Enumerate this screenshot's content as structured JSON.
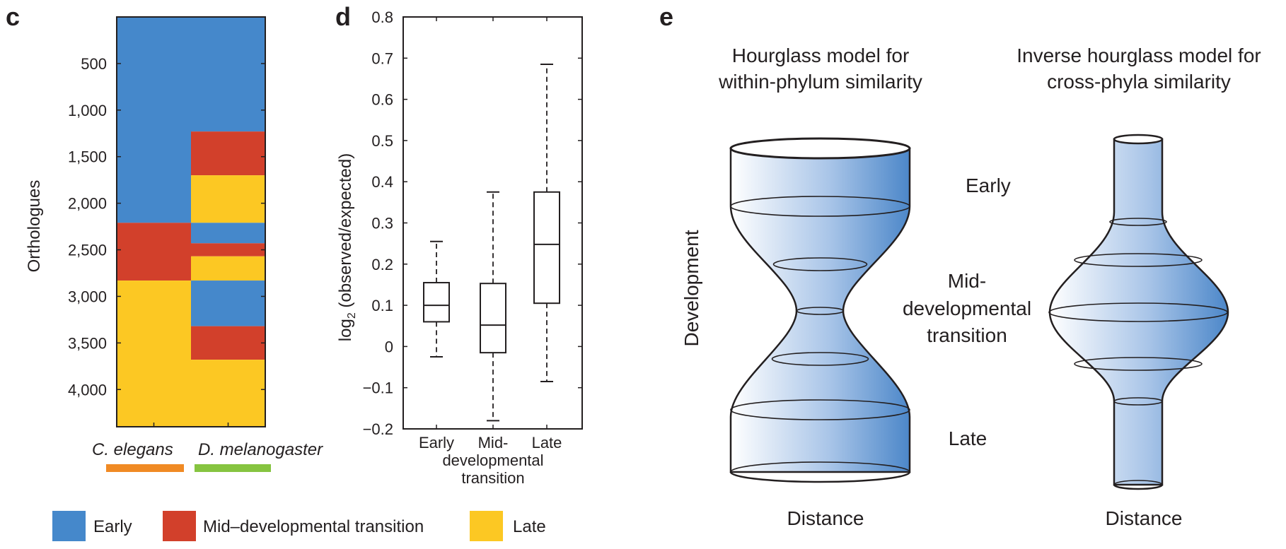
{
  "panels": {
    "c": "c",
    "d": "d",
    "e": "e"
  },
  "colors": {
    "Early": "#4588cb",
    "Mid-developmental transition": "#d2402b",
    "Late": "#fcc823",
    "c_elegans_bar": "#f08a24",
    "d_melanogaster_bar": "#86c440"
  },
  "legend": [
    {
      "label": "Early",
      "color": "#4588cb"
    },
    {
      "label": "Mid–developmental transition",
      "color": "#d2402b"
    },
    {
      "label": "Late",
      "color": "#fcc823"
    }
  ],
  "species": [
    "C. elegans",
    "D. melanogaster"
  ],
  "model_titles": {
    "hourglass_line1": "Hourglass model for",
    "hourglass_line2": "within-phylum similarity",
    "inverse_line1": "Inverse hourglass model for",
    "inverse_line2": "cross-phyla similarity"
  },
  "model_labels": {
    "early": "Early",
    "mid_line1": "Mid-",
    "mid_line2": "developmental",
    "mid_line3": "transition",
    "late": "Late",
    "development": "Development",
    "distance_left": "Distance",
    "distance_right": "Distance"
  },
  "chart_data": [
    {
      "panel": "c",
      "type": "heatmap",
      "ylabel": "Orthologues",
      "yticks": [
        "500",
        "1,000",
        "1,500",
        "2,000",
        "2,500",
        "3,000",
        "3,500",
        "4,000"
      ],
      "ylim": [
        0,
        4400
      ],
      "columns": [
        "C. elegans",
        "D. melanogaster"
      ],
      "segments": {
        "C. elegans": [
          {
            "stage": "Early",
            "from": 0,
            "to": 2210
          },
          {
            "stage": "Mid-developmental transition",
            "from": 2210,
            "to": 2830
          },
          {
            "stage": "Late",
            "from": 2830,
            "to": 4400
          }
        ],
        "D. melanogaster": [
          {
            "stage": "Early",
            "from": 0,
            "to": 1230
          },
          {
            "stage": "Mid-developmental transition",
            "from": 1230,
            "to": 1700
          },
          {
            "stage": "Late",
            "from": 1700,
            "to": 2210
          },
          {
            "stage": "Early",
            "from": 2210,
            "to": 2430
          },
          {
            "stage": "Mid-developmental transition",
            "from": 2430,
            "to": 2570
          },
          {
            "stage": "Late",
            "from": 2570,
            "to": 2830
          },
          {
            "stage": "Early",
            "from": 2830,
            "to": 3320
          },
          {
            "stage": "Mid-developmental transition",
            "from": 3320,
            "to": 3680
          },
          {
            "stage": "Late",
            "from": 3680,
            "to": 4400
          }
        ]
      }
    },
    {
      "panel": "d",
      "type": "box",
      "ylabel": "log₂ (observed/expected)",
      "ylim": [
        -0.2,
        0.8
      ],
      "yticks": [
        "0.8",
        "0.7",
        "0.6",
        "0.5",
        "0.4",
        "0.3",
        "0.2",
        "0.1",
        "0",
        "−0.1",
        "−0.2"
      ],
      "categories": [
        "Early",
        "Mid-\ndevelopmental\ntransition",
        "Late"
      ],
      "category_lines": [
        [
          "Early"
        ],
        [
          "Mid-",
          "developmental",
          "transition"
        ],
        [
          "Late"
        ]
      ],
      "boxes": [
        {
          "name": "Early",
          "min": -0.025,
          "q1": 0.06,
          "median": 0.1,
          "q3": 0.155,
          "max": 0.255
        },
        {
          "name": "Mid-developmental transition",
          "min": -0.18,
          "q1": -0.015,
          "median": 0.052,
          "q3": 0.153,
          "max": 0.375
        },
        {
          "name": "Late",
          "min": -0.085,
          "q1": 0.105,
          "median": 0.248,
          "q3": 0.375,
          "max": 0.685
        }
      ]
    }
  ]
}
